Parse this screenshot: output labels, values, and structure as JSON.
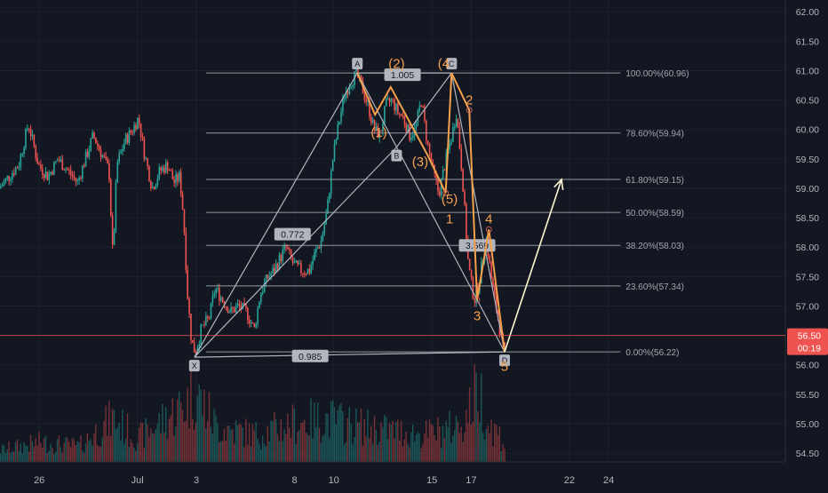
{
  "chart_data": {
    "type": "candlestick",
    "symbol_note": "",
    "y_range": [
      54.35,
      62.2
    ],
    "y_ticks": [
      "62.00",
      "61.50",
      "61.00",
      "60.50",
      "60.00",
      "59.50",
      "59.00",
      "58.50",
      "58.00",
      "57.50",
      "57.00",
      "56.50",
      "56.00",
      "55.50",
      "55.00",
      "54.50"
    ],
    "x_range_day_index": [
      -8,
      32
    ],
    "x_ticks": [
      {
        "label": "26",
        "day": -6
      },
      {
        "label": "Jul",
        "day": -1
      },
      {
        "label": "3",
        "day": 2
      },
      {
        "label": "8",
        "day": 7
      },
      {
        "label": "10",
        "day": 9
      },
      {
        "label": "15",
        "day": 14
      },
      {
        "label": "17",
        "day": 16
      },
      {
        "label": "22",
        "day": 21
      },
      {
        "label": "24",
        "day": 23
      }
    ],
    "last_price": {
      "value": 56.5,
      "label": "56.50",
      "countdown": "00:19",
      "color": "#ef5350"
    },
    "price_path": [
      [
        -8,
        59.0
      ],
      [
        -7.5,
        59.2
      ],
      [
        -7,
        59.4
      ],
      [
        -6.5,
        60.1
      ],
      [
        -6,
        59.4
      ],
      [
        -5.5,
        59.2
      ],
      [
        -5,
        59.5
      ],
      [
        -4.5,
        59.3
      ],
      [
        -4,
        59.1
      ],
      [
        -3.6,
        59.5
      ],
      [
        -3.2,
        59.9
      ],
      [
        -2.8,
        59.6
      ],
      [
        -2.4,
        59.3
      ],
      [
        -2.2,
        57.8
      ],
      [
        -2,
        59.4
      ],
      [
        -1.6,
        59.8
      ],
      [
        -1.2,
        60.0
      ],
      [
        -0.9,
        60.2
      ],
      [
        -0.6,
        59.6
      ],
      [
        -0.2,
        59.0
      ],
      [
        0.2,
        59.3
      ],
      [
        0.6,
        59.4
      ],
      [
        0.9,
        59.1
      ],
      [
        1.2,
        59.2
      ],
      [
        1.4,
        58.5
      ],
      [
        1.6,
        57.2
      ],
      [
        1.8,
        56.4
      ],
      [
        2.0,
        56.2
      ],
      [
        2.3,
        56.6
      ],
      [
        2.7,
        56.8
      ],
      [
        3.0,
        57.3
      ],
      [
        3.4,
        57.1
      ],
      [
        3.8,
        56.9
      ],
      [
        4.2,
        57.0
      ],
      [
        4.6,
        56.9
      ],
      [
        5.0,
        56.6
      ],
      [
        5.3,
        57.2
      ],
      [
        5.7,
        57.5
      ],
      [
        6.0,
        57.6
      ],
      [
        6.3,
        57.8
      ],
      [
        6.6,
        58.0
      ],
      [
        7.0,
        57.7
      ],
      [
        7.4,
        57.6
      ],
      [
        7.8,
        57.6
      ],
      [
        8.1,
        57.9
      ],
      [
        8.4,
        58.1
      ],
      [
        8.7,
        58.6
      ],
      [
        9.0,
        59.5
      ],
      [
        9.3,
        60.1
      ],
      [
        9.6,
        60.6
      ],
      [
        9.9,
        60.8
      ],
      [
        10.2,
        60.95
      ],
      [
        10.5,
        60.7
      ],
      [
        10.8,
        60.4
      ],
      [
        11.1,
        60.0
      ],
      [
        11.4,
        59.9
      ],
      [
        11.7,
        60.4
      ],
      [
        12.0,
        60.5
      ],
      [
        12.3,
        60.3
      ],
      [
        12.6,
        60.2
      ],
      [
        12.9,
        59.9
      ],
      [
        13.2,
        60.0
      ],
      [
        13.5,
        60.5
      ],
      [
        13.8,
        59.8
      ],
      [
        14.1,
        59.3
      ],
      [
        14.4,
        58.9
      ],
      [
        14.7,
        59.4
      ],
      [
        15.0,
        59.8
      ],
      [
        15.3,
        60.3
      ],
      [
        15.6,
        59.2
      ],
      [
        15.9,
        57.7
      ],
      [
        16.2,
        57.1
      ],
      [
        16.5,
        57.5
      ],
      [
        16.8,
        58.2
      ],
      [
        17.1,
        57.4
      ],
      [
        17.4,
        56.8
      ],
      [
        17.7,
        56.22
      ]
    ],
    "volume_path": [
      [
        -8,
        0.15
      ],
      [
        -6,
        0.25
      ],
      [
        -4,
        0.2
      ],
      [
        -2.3,
        0.55
      ],
      [
        -1,
        0.3
      ],
      [
        1.5,
        0.75
      ],
      [
        1.9,
        0.9
      ],
      [
        3,
        0.45
      ],
      [
        5,
        0.35
      ],
      [
        7,
        0.5
      ],
      [
        8.7,
        0.55
      ],
      [
        9.4,
        0.5
      ],
      [
        10.5,
        0.45
      ],
      [
        12,
        0.4
      ],
      [
        13.5,
        0.35
      ],
      [
        14.5,
        0.4
      ],
      [
        15.2,
        0.45
      ],
      [
        15.8,
        0.6
      ],
      [
        16.3,
        1.0
      ],
      [
        16.8,
        0.5
      ],
      [
        17.4,
        0.35
      ],
      [
        17.8,
        0.15
      ]
    ],
    "fib_levels": [
      {
        "label": "100.00%(60.96)",
        "value": 60.96
      },
      {
        "label": "78.60%(59.94)",
        "value": 59.94
      },
      {
        "label": "61.80%(59.15)",
        "value": 59.15
      },
      {
        "label": "50.00%(58.59)",
        "value": 58.59
      },
      {
        "label": "38.20%(58.03)",
        "value": 58.03
      },
      {
        "label": "23.60%(57.34)",
        "value": 57.34
      },
      {
        "label": "0.00%(56.22)",
        "value": 56.22
      }
    ],
    "xabcd": {
      "points": [
        {
          "label": "X",
          "day": 1.9,
          "price": 56.13
        },
        {
          "label": "A",
          "day": 10.2,
          "price": 60.96
        },
        {
          "label": "B",
          "day": 12.2,
          "price": 59.7
        },
        {
          "label": "C",
          "day": 15.0,
          "price": 60.96
        },
        {
          "label": "D",
          "day": 17.7,
          "price": 56.22
        }
      ],
      "ratios": [
        {
          "label": "0.772",
          "day": 6.9,
          "price": 58.22
        },
        {
          "label": "1.005",
          "day": 12.5,
          "price": 60.93
        },
        {
          "label": "3.569",
          "day": 16.3,
          "price": 58.03
        },
        {
          "label": "0.985",
          "day": 7.8,
          "price": 56.15
        }
      ]
    },
    "elliott_path": [
      [
        10.2,
        60.96
      ],
      [
        11.1,
        60.25
      ],
      [
        11.9,
        60.72
      ],
      [
        13.8,
        59.55
      ],
      [
        14.7,
        58.92
      ],
      [
        15.0,
        60.96
      ],
      [
        15.9,
        60.33
      ],
      [
        16.3,
        57.1
      ],
      [
        16.9,
        58.3
      ],
      [
        17.7,
        56.22
      ]
    ],
    "elliott_labels": [
      {
        "label": "(1)",
        "day": 11.3,
        "price": 59.95
      },
      {
        "label": "(2)",
        "day": 12.2,
        "price": 61.12
      },
      {
        "label": "(3)",
        "day": 13.4,
        "price": 59.45
      },
      {
        "label": "(4",
        "day": 14.6,
        "price": 61.12
      },
      {
        "label": "(5)",
        "day": 14.9,
        "price": 58.82
      },
      {
        "label": "1",
        "day": 14.9,
        "price": 58.48
      },
      {
        "label": "2",
        "day": 15.9,
        "price": 60.5
      },
      {
        "label": "3",
        "day": 16.3,
        "price": 56.83
      },
      {
        "label": "4",
        "day": 16.9,
        "price": 58.48
      },
      {
        "label": "5",
        "day": 17.7,
        "price": 55.97
      }
    ],
    "projection": {
      "from_day": 17.7,
      "from_price": 56.22,
      "to_day": 20.6,
      "to_price": 59.15
    },
    "colors": {
      "background": "#131722",
      "candle_up": "#26a69a",
      "candle_down": "#ef5350",
      "pattern": "#b2b5be",
      "elliott": "#f7a04b",
      "projection": "#fff8d6",
      "axis_text": "#b2b5be"
    }
  }
}
